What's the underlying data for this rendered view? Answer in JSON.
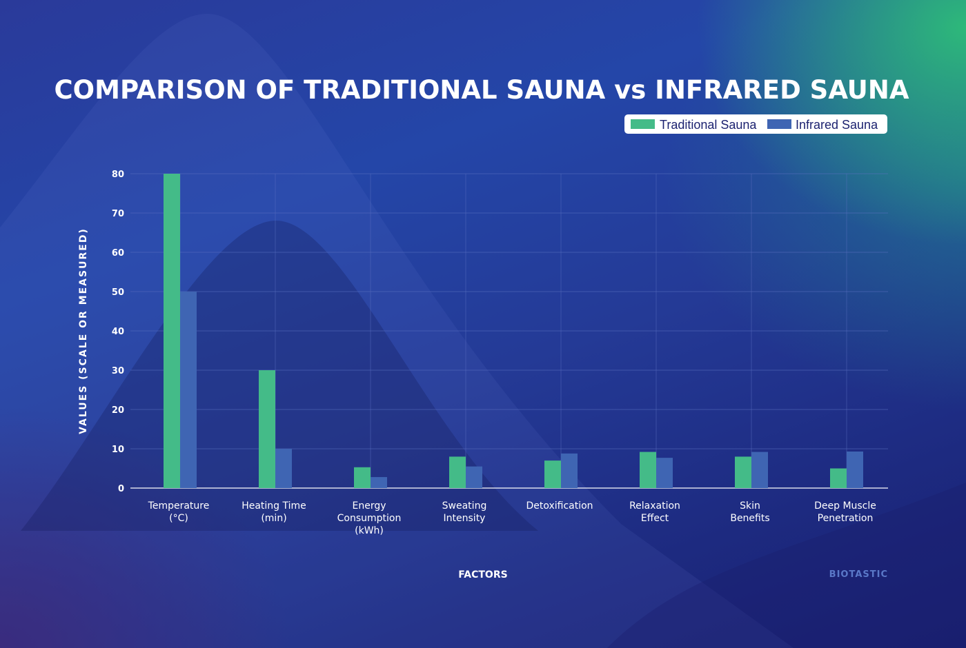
{
  "chart_data": {
    "type": "bar",
    "title": "COMPARISON OF TRADITIONAL SAUNA vs INFRARED SAUNA",
    "xlabel": "FACTORS",
    "ylabel": "VALUES (SCALE OR MEASURED)",
    "ylim": [
      0,
      80
    ],
    "yticks": [
      0,
      10,
      20,
      30,
      40,
      50,
      60,
      70,
      80
    ],
    "grid": true,
    "legend_position": "top-right",
    "categories": [
      [
        "Temperature",
        "(°C)"
      ],
      [
        "Heating Time",
        "(min)"
      ],
      [
        "Energy",
        "Consumption",
        "(kWh)"
      ],
      [
        "Sweating",
        "Intensity"
      ],
      [
        "Detoxification"
      ],
      [
        "Relaxation",
        "Effect"
      ],
      [
        "Skin",
        "Benefits"
      ],
      [
        "Deep Muscle",
        "Penetration"
      ]
    ],
    "series": [
      {
        "name": "Traditional Sauna",
        "color": "#44bb88",
        "values": [
          80,
          30,
          5.3,
          8,
          7,
          9.2,
          8,
          5
        ]
      },
      {
        "name": "Infrared Sauna",
        "color": "#3f65b3",
        "values": [
          50,
          10,
          2.8,
          5.5,
          8.8,
          7.7,
          9.2,
          9.3
        ]
      }
    ]
  },
  "brand": "BIOTASTIC",
  "colors": {
    "grid": "#5a6fc0",
    "legend_bg": "#ffffff"
  }
}
